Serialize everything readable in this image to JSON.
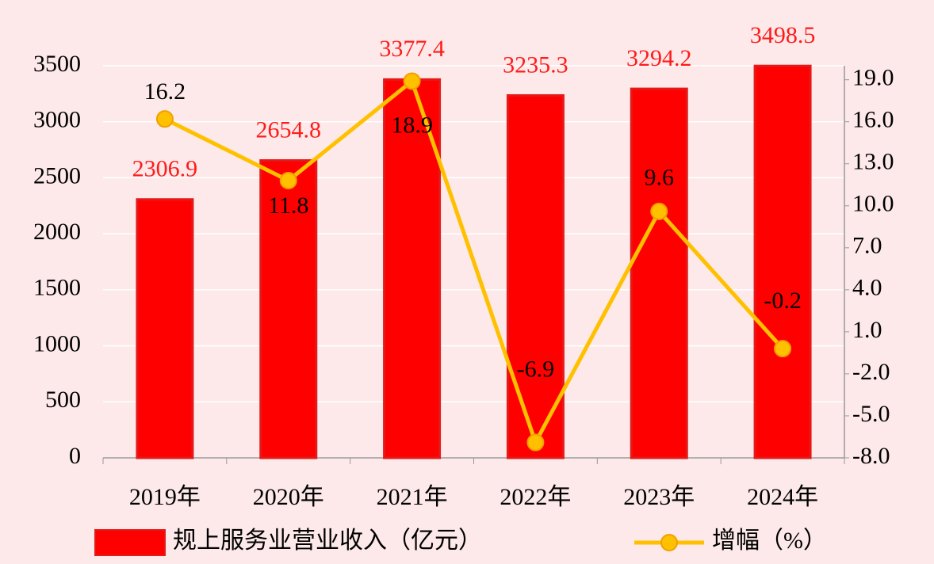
{
  "chart_data": {
    "type": "bar",
    "categories": [
      "2019年",
      "2020年",
      "2021年",
      "2022年",
      "2023年",
      "2024年"
    ],
    "series": [
      {
        "name": "规上服务业营业收入（亿元）",
        "type": "bar",
        "color": "#ff0000",
        "values": [
          2306.9,
          2654.8,
          3377.4,
          3235.3,
          3294.2,
          3498.5
        ]
      },
      {
        "name": "增幅（%）",
        "type": "line",
        "axis": "y2",
        "color": "#ffc000",
        "values": [
          16.2,
          11.8,
          18.9,
          -6.9,
          9.6,
          -0.2
        ]
      }
    ],
    "ylim": [
      0,
      3500
    ],
    "yticks": [
      0,
      500,
      1000,
      1500,
      2000,
      2500,
      3000,
      3500
    ],
    "y2lim": [
      -8,
      20
    ],
    "y2ticks": [
      {
        "value": -8,
        "label": "-8.0"
      },
      {
        "value": -5,
        "label": "-5.0"
      },
      {
        "value": -2,
        "label": "-2.0"
      },
      {
        "value": 1,
        "label": "1.0"
      },
      {
        "value": 4,
        "label": "4.0"
      },
      {
        "value": 7,
        "label": "7.0"
      },
      {
        "value": 10,
        "label": "10.0"
      },
      {
        "value": 13,
        "label": "13.0"
      },
      {
        "value": 16,
        "label": "16.0"
      },
      {
        "value": 19,
        "label": "19.0"
      }
    ],
    "grid": true,
    "legend": "bottom"
  }
}
